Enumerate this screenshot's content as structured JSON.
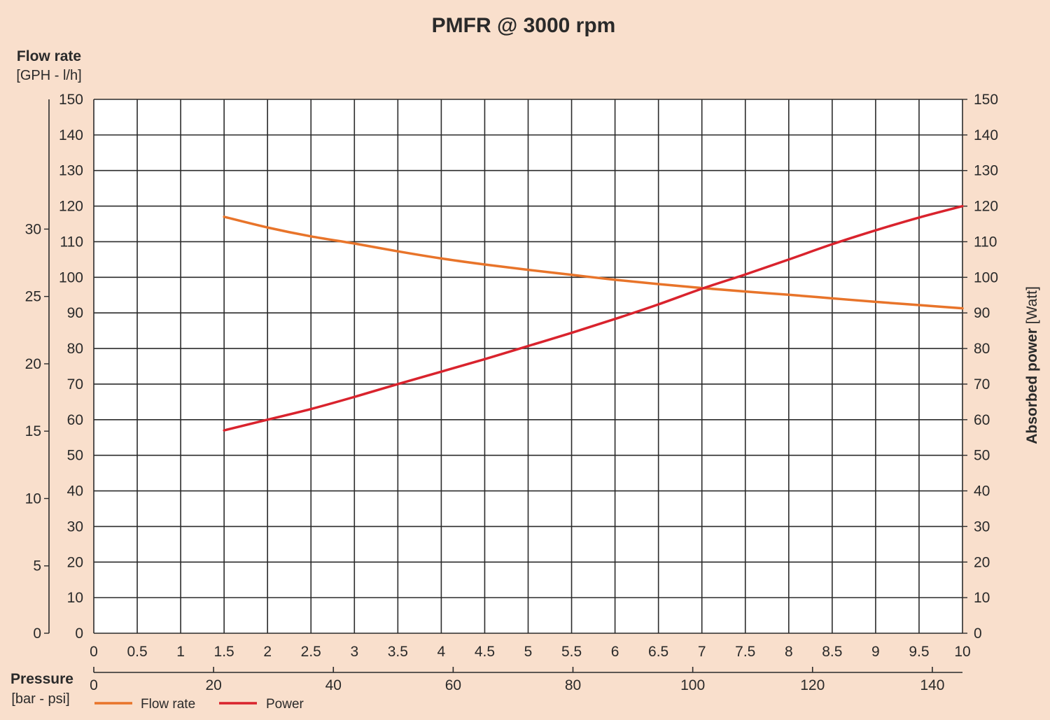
{
  "chart_data": {
    "type": "line",
    "title": "PMFR @ 3000 rpm",
    "left_axis": {
      "label": "Flow rate",
      "unit": "[GPH - l/h]",
      "gph_ticks": [
        "0",
        "5",
        "10",
        "15",
        "20",
        "25",
        "30"
      ],
      "lh_ticks": [
        "0",
        "10",
        "20",
        "30",
        "40",
        "50",
        "60",
        "70",
        "80",
        "90",
        "100",
        "110",
        "120",
        "130",
        "140",
        "150"
      ],
      "ylim": [
        0,
        150
      ]
    },
    "right_axis": {
      "label": "Absorbed power",
      "unit": "[Watt]",
      "ticks": [
        "0",
        "10",
        "20",
        "30",
        "40",
        "50",
        "60",
        "70",
        "80",
        "90",
        "100",
        "110",
        "120",
        "130",
        "140",
        "150"
      ],
      "ylim": [
        0,
        150
      ]
    },
    "x_axis": {
      "label": "Pressure",
      "unit": "[bar - psi]",
      "bar_ticks": [
        "0",
        "0.5",
        "1",
        "1.5",
        "2",
        "2.5",
        "3",
        "3.5",
        "4",
        "4.5",
        "5",
        "5.5",
        "6",
        "6.5",
        "7",
        "7.5",
        "8",
        "8.5",
        "9",
        "9.5",
        "10"
      ],
      "psi_ticks": [
        "0",
        "20",
        "40",
        "60",
        "80",
        "100",
        "120",
        "140"
      ],
      "xlim": [
        0,
        10
      ]
    },
    "grid": true,
    "legend_position": "bottom-left",
    "series": [
      {
        "name": "Flow rate",
        "color": "#e8742a",
        "x": [
          1.5,
          2,
          2.5,
          3,
          3.5,
          4,
          4.5,
          5,
          5.5,
          6,
          6.5,
          7,
          7.5,
          8,
          8.5,
          9,
          9.5,
          10
        ],
        "y": [
          117,
          114,
          111.5,
          109.5,
          107.3,
          105.3,
          103.6,
          102.1,
          100.7,
          99.3,
          98.1,
          97,
          96,
          95.1,
          94.1,
          93.1,
          92.2,
          91.3
        ]
      },
      {
        "name": "Power",
        "color": "#d9232d",
        "x": [
          1.5,
          2,
          2.5,
          3,
          3.5,
          4,
          4.5,
          5,
          5.5,
          6,
          6.5,
          7,
          7.5,
          8,
          8.5,
          9,
          9.5,
          10
        ],
        "y": [
          57,
          60,
          63,
          66.4,
          70,
          73.5,
          77,
          80.7,
          84.4,
          88.3,
          92.4,
          96.8,
          100.8,
          105,
          109.3,
          113.2,
          116.8,
          120
        ]
      }
    ]
  }
}
